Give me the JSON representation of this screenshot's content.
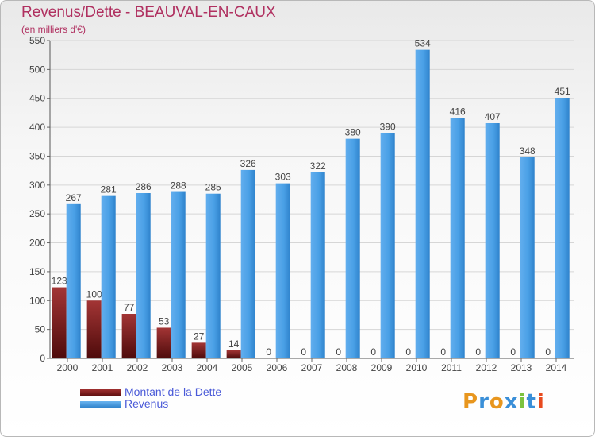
{
  "title": "Revenus/Dette - BEAUVAL-EN-CAUX",
  "subtitle": "(en milliers d'€)",
  "colors": {
    "debt": "#7a1a1a",
    "revenue": "#3d97e0",
    "title": "#b03060"
  },
  "legend": {
    "debt_label": "Montant de la Dette",
    "revenue_label": "Revenus",
    "position": "bottom-left"
  },
  "logo": {
    "text": "Proxiti"
  },
  "chart_data": {
    "type": "bar",
    "categories": [
      "2000",
      "2001",
      "2002",
      "2003",
      "2004",
      "2005",
      "2006",
      "2007",
      "2008",
      "2009",
      "2010",
      "2011",
      "2012",
      "2013",
      "2014"
    ],
    "series": [
      {
        "name": "Montant de la Dette",
        "values": [
          123,
          100,
          77,
          53,
          27,
          14,
          0,
          0,
          0,
          0,
          0,
          0,
          0,
          0,
          0
        ]
      },
      {
        "name": "Revenus",
        "values": [
          267,
          281,
          286,
          288,
          285,
          326,
          303,
          322,
          380,
          390,
          534,
          416,
          407,
          348,
          451
        ]
      }
    ],
    "ylim": [
      0,
      550
    ],
    "yticks": [
      0,
      50,
      100,
      150,
      200,
      250,
      300,
      350,
      400,
      450,
      500,
      550
    ],
    "grid": true,
    "xlabel": "",
    "ylabel": ""
  }
}
